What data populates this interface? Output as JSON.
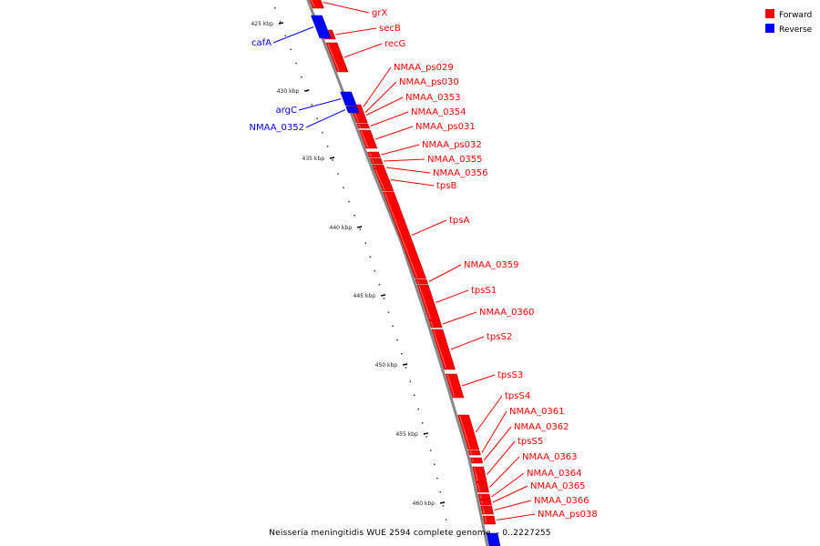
{
  "legend": {
    "forward": {
      "label": "Forward",
      "color": "#ff0000"
    },
    "reverse": {
      "label": "Reverse",
      "color": "#0000ff"
    }
  },
  "caption": "Neisseria meningitidis WUE 2594 complete genome. - 0..2227255",
  "backbone_color": "#888888",
  "tick_labels": [
    "425 kbp",
    "430 kbp",
    "435 kbp",
    "440 kbp",
    "445 kbp",
    "450 kbp",
    "455 kbp",
    "460 kbp"
  ],
  "genes": [
    {
      "label": "grX",
      "strand": "forward"
    },
    {
      "label": "secB",
      "strand": "forward"
    },
    {
      "label": "recG",
      "strand": "forward"
    },
    {
      "label": "cafA",
      "strand": "reverse"
    },
    {
      "label": "NMAA_ps029",
      "strand": "forward"
    },
    {
      "label": "NMAA_ps030",
      "strand": "forward"
    },
    {
      "label": "NMAA_0353",
      "strand": "forward"
    },
    {
      "label": "NMAA_0354",
      "strand": "forward"
    },
    {
      "label": "NMAA_ps031",
      "strand": "forward"
    },
    {
      "label": "argC",
      "strand": "reverse"
    },
    {
      "label": "NMAA_0352",
      "strand": "reverse"
    },
    {
      "label": "NMAA_ps032",
      "strand": "forward"
    },
    {
      "label": "NMAA_0355",
      "strand": "forward"
    },
    {
      "label": "NMAA_0356",
      "strand": "forward"
    },
    {
      "label": "tpsB",
      "strand": "forward"
    },
    {
      "label": "tpsA",
      "strand": "forward"
    },
    {
      "label": "NMAA_0359",
      "strand": "forward"
    },
    {
      "label": "tpsS1",
      "strand": "forward"
    },
    {
      "label": "NMAA_0360",
      "strand": "forward"
    },
    {
      "label": "tpsS2",
      "strand": "forward"
    },
    {
      "label": "tpsS3",
      "strand": "forward"
    },
    {
      "label": "tpsS4",
      "strand": "forward"
    },
    {
      "label": "NMAA_0361",
      "strand": "forward"
    },
    {
      "label": "NMAA_0362",
      "strand": "forward"
    },
    {
      "label": "tpsS5",
      "strand": "forward"
    },
    {
      "label": "NMAA_0363",
      "strand": "forward"
    },
    {
      "label": "NMAA_0364",
      "strand": "forward"
    },
    {
      "label": "NMAA_0365",
      "strand": "forward"
    },
    {
      "label": "NMAA_0366",
      "strand": "forward"
    },
    {
      "label": "NMAA_ps038",
      "strand": "forward"
    }
  ]
}
